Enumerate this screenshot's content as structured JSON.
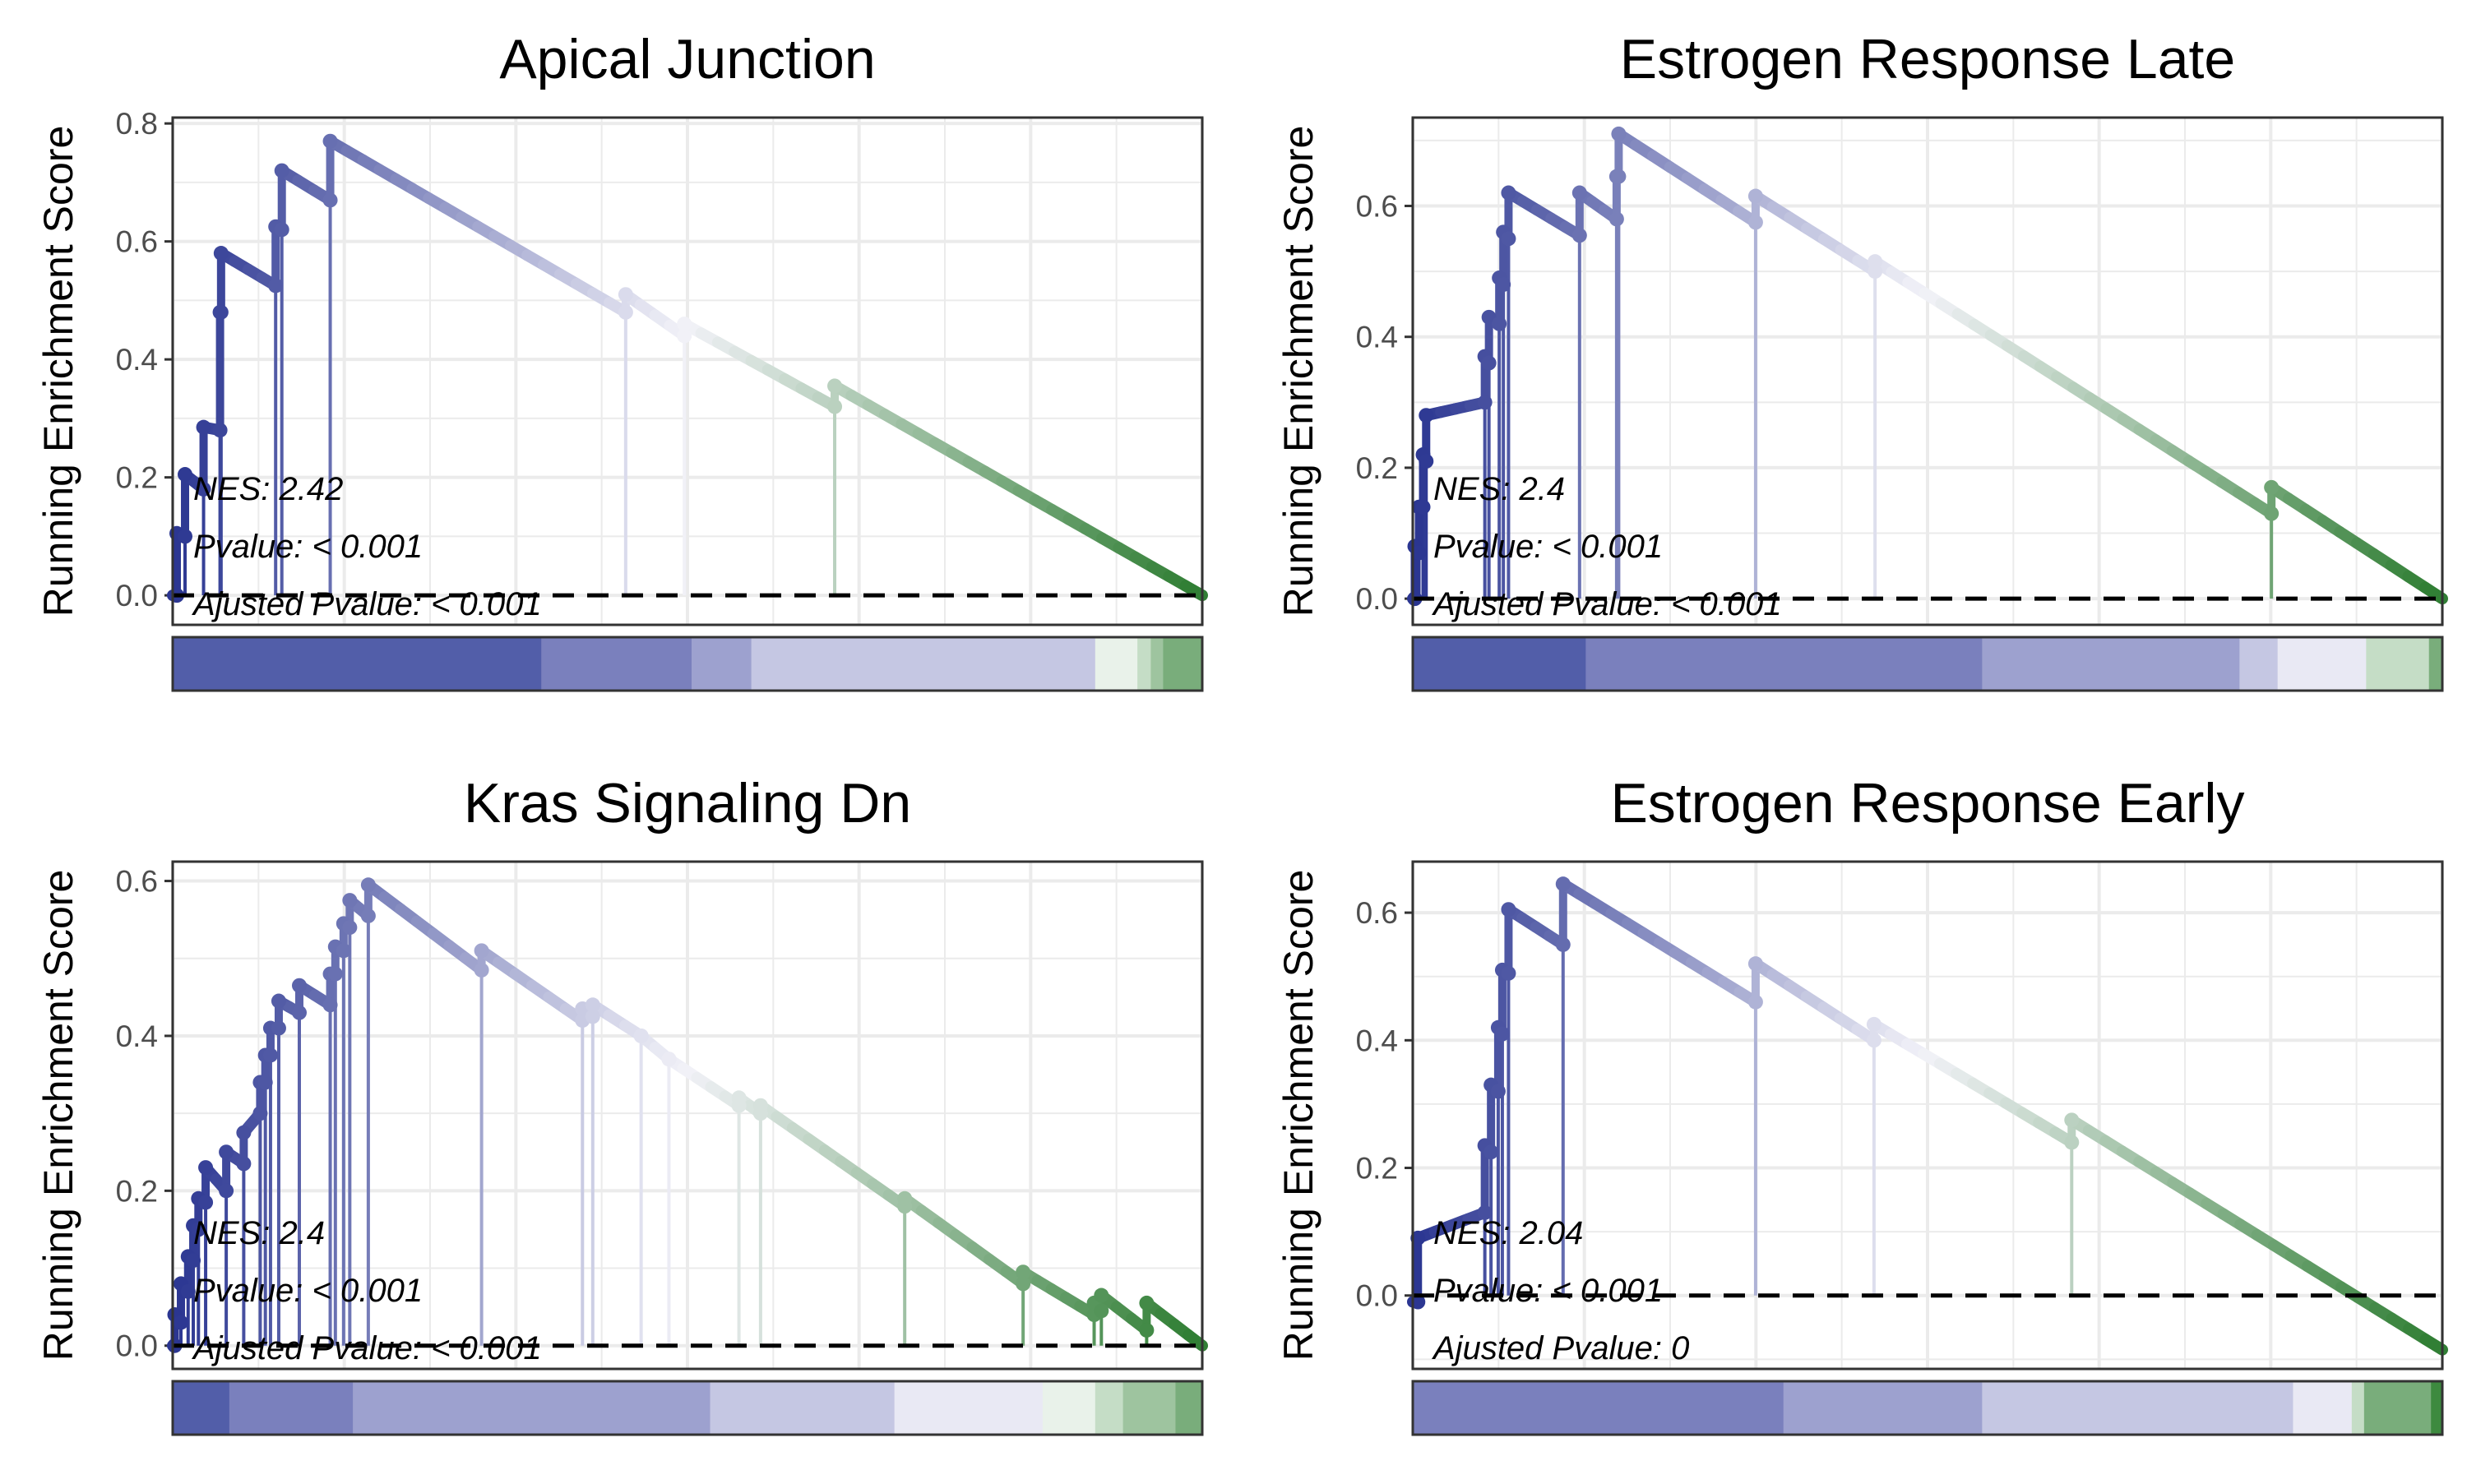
{
  "chart_data": [
    {
      "type": "line",
      "title": "Apical Junction",
      "ylabel": "Running Enrichment Score",
      "ylim": [
        -0.05,
        0.81
      ],
      "yticks": [
        0.0,
        0.2,
        0.4,
        0.6,
        0.8
      ],
      "ytick_labels": [
        "0.0",
        "0.2",
        "0.4",
        "0.6",
        "0.8"
      ],
      "grid": true,
      "baseline": 0,
      "stats": {
        "nes": "NES: 2.42",
        "pvalue": "Pvalue: < 0.001",
        "adj_pvalue": "Ajusted Pvalue: < 0.001"
      },
      "hits": [
        {
          "x": 0.004,
          "low": 0.0,
          "high": 0.105
        },
        {
          "x": 0.012,
          "low": 0.1,
          "high": 0.205
        },
        {
          "x": 0.03,
          "low": 0.18,
          "high": 0.285
        },
        {
          "x": 0.046,
          "low": 0.28,
          "high": 0.48
        },
        {
          "x": 0.047,
          "low": 0.48,
          "high": 0.58
        },
        {
          "x": 0.1,
          "low": 0.525,
          "high": 0.625
        },
        {
          "x": 0.106,
          "low": 0.62,
          "high": 0.72
        },
        {
          "x": 0.153,
          "low": 0.67,
          "high": 0.77
        },
        {
          "x": 0.44,
          "low": 0.48,
          "high": 0.51
        },
        {
          "x": 0.497,
          "low": 0.44,
          "high": 0.46
        },
        {
          "x": 0.643,
          "low": 0.32,
          "high": 0.355
        }
      ],
      "end_x": 1.0,
      "end_y": 0.0,
      "color_bar": [
        {
          "from": 0.0,
          "to": 0.358,
          "color": "#525ea9"
        },
        {
          "from": 0.358,
          "to": 0.504,
          "color": "#7a80bd"
        },
        {
          "from": 0.504,
          "to": 0.562,
          "color": "#9da1cf"
        },
        {
          "from": 0.562,
          "to": 0.896,
          "color": "#c5c7e3"
        },
        {
          "from": 0.896,
          "to": 0.937,
          "color": "#e9f2ea"
        },
        {
          "from": 0.937,
          "to": 0.95,
          "color": "#c5ddc6"
        },
        {
          "from": 0.95,
          "to": 0.962,
          "color": "#9ec49f"
        },
        {
          "from": 0.962,
          "to": 1.0,
          "color": "#79ad7b"
        }
      ]
    },
    {
      "type": "line",
      "title": "Estrogen Response Late",
      "ylabel": "Running Enrichment Score",
      "ylim": [
        -0.04,
        0.735
      ],
      "yticks": [
        0.0,
        0.2,
        0.4,
        0.6
      ],
      "ytick_labels": [
        "0.0",
        "0.2",
        "0.4",
        "0.6"
      ],
      "grid": true,
      "baseline": 0,
      "stats": {
        "nes": "NES: 2.4",
        "pvalue": "Pvalue: < 0.001",
        "adj_pvalue": "Ajusted Pvalue: < 0.001"
      },
      "hits": [
        {
          "x": 0.002,
          "low": 0.0,
          "high": 0.08
        },
        {
          "x": 0.006,
          "low": 0.07,
          "high": 0.14
        },
        {
          "x": 0.01,
          "low": 0.14,
          "high": 0.22
        },
        {
          "x": 0.013,
          "low": 0.21,
          "high": 0.28
        },
        {
          "x": 0.07,
          "low": 0.3,
          "high": 0.37
        },
        {
          "x": 0.074,
          "low": 0.36,
          "high": 0.43
        },
        {
          "x": 0.084,
          "low": 0.42,
          "high": 0.49
        },
        {
          "x": 0.088,
          "low": 0.48,
          "high": 0.56
        },
        {
          "x": 0.093,
          "low": 0.55,
          "high": 0.62
        },
        {
          "x": 0.162,
          "low": 0.555,
          "high": 0.62
        },
        {
          "x": 0.198,
          "low": 0.58,
          "high": 0.645
        },
        {
          "x": 0.2,
          "low": 0.645,
          "high": 0.71
        },
        {
          "x": 0.333,
          "low": 0.575,
          "high": 0.615
        },
        {
          "x": 0.449,
          "low": 0.5,
          "high": 0.515
        },
        {
          "x": 0.834,
          "low": 0.13,
          "high": 0.17
        }
      ],
      "end_x": 1.0,
      "end_y": 0.0,
      "color_bar": [
        {
          "from": 0.0,
          "to": 0.168,
          "color": "#525ea9"
        },
        {
          "from": 0.168,
          "to": 0.553,
          "color": "#7a80bd"
        },
        {
          "from": 0.553,
          "to": 0.803,
          "color": "#9da1cf"
        },
        {
          "from": 0.803,
          "to": 0.84,
          "color": "#c5c7e3"
        },
        {
          "from": 0.84,
          "to": 0.926,
          "color": "#e9e9f4"
        },
        {
          "from": 0.926,
          "to": 0.987,
          "color": "#c5ddc6"
        },
        {
          "from": 0.987,
          "to": 1.0,
          "color": "#79ad7b"
        }
      ]
    },
    {
      "type": "line",
      "title": "Kras Signaling Dn",
      "ylabel": "Running Enrichment Score",
      "ylim": [
        -0.03,
        0.625
      ],
      "yticks": [
        0.0,
        0.2,
        0.4,
        0.6
      ],
      "ytick_labels": [
        "0.0",
        "0.2",
        "0.4",
        "0.6"
      ],
      "grid": true,
      "baseline": 0,
      "stats": {
        "nes": "NES: 2.4",
        "pvalue": "Pvalue: < 0.001",
        "adj_pvalue": "Ajusted Pvalue: < 0.001"
      },
      "hits": [
        {
          "x": 0.002,
          "low": 0.0,
          "high": 0.04
        },
        {
          "x": 0.008,
          "low": 0.03,
          "high": 0.08
        },
        {
          "x": 0.015,
          "low": 0.07,
          "high": 0.115
        },
        {
          "x": 0.02,
          "low": 0.11,
          "high": 0.155
        },
        {
          "x": 0.025,
          "low": 0.15,
          "high": 0.19
        },
        {
          "x": 0.032,
          "low": 0.185,
          "high": 0.23
        },
        {
          "x": 0.052,
          "low": 0.2,
          "high": 0.25
        },
        {
          "x": 0.069,
          "low": 0.235,
          "high": 0.275
        },
        {
          "x": 0.085,
          "low": 0.3,
          "high": 0.34
        },
        {
          "x": 0.09,
          "low": 0.34,
          "high": 0.375
        },
        {
          "x": 0.095,
          "low": 0.375,
          "high": 0.41
        },
        {
          "x": 0.103,
          "low": 0.41,
          "high": 0.445
        },
        {
          "x": 0.123,
          "low": 0.43,
          "high": 0.465
        },
        {
          "x": 0.153,
          "low": 0.44,
          "high": 0.48
        },
        {
          "x": 0.158,
          "low": 0.48,
          "high": 0.515
        },
        {
          "x": 0.166,
          "low": 0.51,
          "high": 0.545
        },
        {
          "x": 0.172,
          "low": 0.54,
          "high": 0.575
        },
        {
          "x": 0.19,
          "low": 0.555,
          "high": 0.595
        },
        {
          "x": 0.3,
          "low": 0.485,
          "high": 0.51
        },
        {
          "x": 0.398,
          "low": 0.42,
          "high": 0.435
        },
        {
          "x": 0.408,
          "low": 0.425,
          "high": 0.44
        },
        {
          "x": 0.455,
          "low": 0.4,
          "high": 0.4
        },
        {
          "x": 0.482,
          "low": 0.37,
          "high": 0.37
        },
        {
          "x": 0.55,
          "low": 0.31,
          "high": 0.32
        },
        {
          "x": 0.571,
          "low": 0.3,
          "high": 0.31
        },
        {
          "x": 0.711,
          "low": 0.18,
          "high": 0.19
        },
        {
          "x": 0.826,
          "low": 0.08,
          "high": 0.095
        },
        {
          "x": 0.895,
          "low": 0.04,
          "high": 0.055
        },
        {
          "x": 0.902,
          "low": 0.045,
          "high": 0.065
        },
        {
          "x": 0.946,
          "low": 0.02,
          "high": 0.055
        }
      ],
      "end_x": 1.0,
      "end_y": 0.0,
      "color_bar": [
        {
          "from": 0.0,
          "to": 0.055,
          "color": "#525ea9"
        },
        {
          "from": 0.055,
          "to": 0.175,
          "color": "#7a80bd"
        },
        {
          "from": 0.175,
          "to": 0.522,
          "color": "#9da1cf"
        },
        {
          "from": 0.522,
          "to": 0.701,
          "color": "#c5c7e3"
        },
        {
          "from": 0.701,
          "to": 0.845,
          "color": "#e9e9f4"
        },
        {
          "from": 0.845,
          "to": 0.896,
          "color": "#e9f2ea"
        },
        {
          "from": 0.896,
          "to": 0.923,
          "color": "#c5ddc6"
        },
        {
          "from": 0.923,
          "to": 0.974,
          "color": "#9ec49f"
        },
        {
          "from": 0.974,
          "to": 1.0,
          "color": "#79ad7b"
        }
      ]
    },
    {
      "type": "line",
      "title": "Estrogen Response Early",
      "ylabel": "Running Enrichment Score",
      "ylim": [
        -0.115,
        0.68
      ],
      "yticks": [
        0.0,
        0.2,
        0.4,
        0.6
      ],
      "ytick_labels": [
        "0.0",
        "0.2",
        "0.4",
        "0.6"
      ],
      "grid": true,
      "baseline": 0,
      "stats": {
        "nes": "NES: 2.04",
        "pvalue": "Pvalue: < 0.001",
        "adj_pvalue": "Ajusted Pvalue: 0"
      },
      "hits": [
        {
          "x": 0.005,
          "low": -0.01,
          "high": 0.09
        },
        {
          "x": 0.07,
          "low": 0.13,
          "high": 0.235
        },
        {
          "x": 0.076,
          "low": 0.225,
          "high": 0.33
        },
        {
          "x": 0.083,
          "low": 0.32,
          "high": 0.42
        },
        {
          "x": 0.087,
          "low": 0.41,
          "high": 0.51
        },
        {
          "x": 0.093,
          "low": 0.505,
          "high": 0.605
        },
        {
          "x": 0.146,
          "low": 0.55,
          "high": 0.645
        },
        {
          "x": 0.333,
          "low": 0.46,
          "high": 0.52
        },
        {
          "x": 0.448,
          "low": 0.4,
          "high": 0.425
        },
        {
          "x": 0.64,
          "low": 0.24,
          "high": 0.275
        }
      ],
      "end_x": 1.0,
      "end_y": -0.085,
      "color_bar": [
        {
          "from": 0.0,
          "to": 0.36,
          "color": "#7a80bd"
        },
        {
          "from": 0.36,
          "to": 0.553,
          "color": "#9da1cf"
        },
        {
          "from": 0.553,
          "to": 0.855,
          "color": "#c5c7e3"
        },
        {
          "from": 0.855,
          "to": 0.912,
          "color": "#e9e9f4"
        },
        {
          "from": 0.912,
          "to": 0.924,
          "color": "#c5ddc6"
        },
        {
          "from": 0.924,
          "to": 0.989,
          "color": "#79ad7b"
        },
        {
          "from": 0.989,
          "to": 1.0,
          "color": "#3d8a3f"
        }
      ]
    }
  ],
  "palette": {
    "high": "#2a3591",
    "mid": "#f2f2f8",
    "low": "#2e7d32",
    "grid": "#ebebeb",
    "frame": "#333333",
    "baseline": "#000000"
  }
}
